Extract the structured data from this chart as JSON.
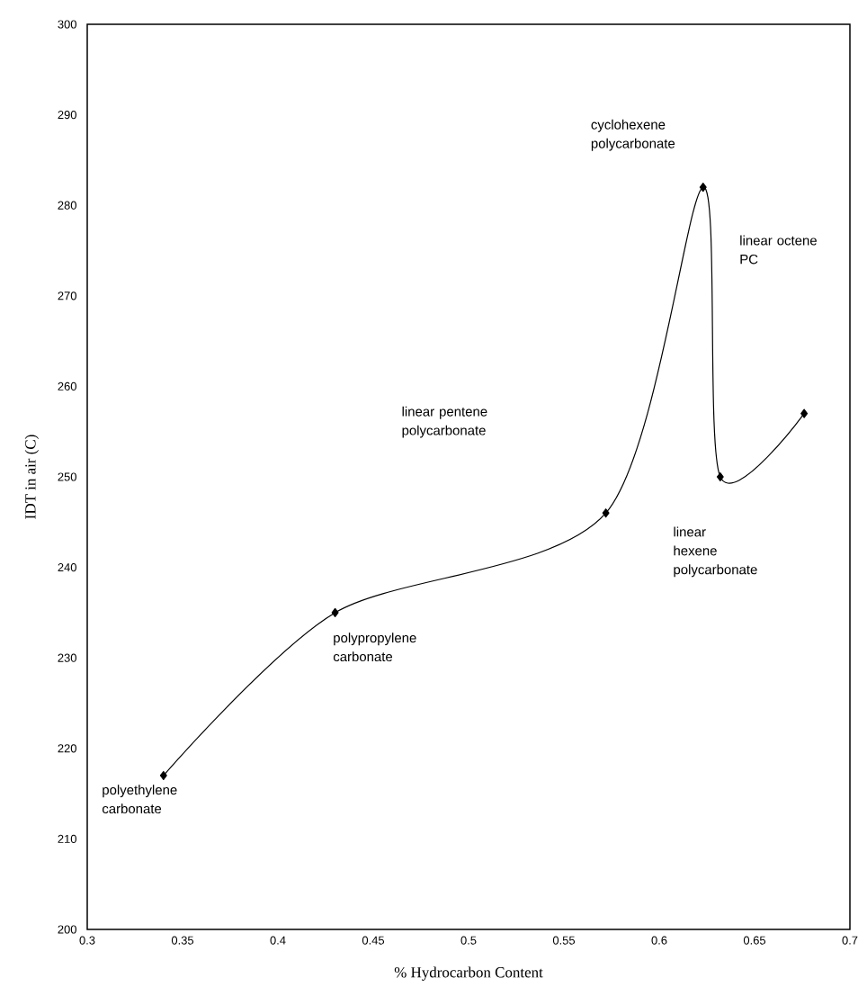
{
  "chart_data": {
    "type": "line",
    "xlabel": "% Hydrocarbon Content",
    "ylabel": "IDT in air (C)",
    "x": [
      0.34,
      0.43,
      0.572,
      0.623,
      0.632,
      0.676
    ],
    "series": [
      {
        "color": "#000000",
        "values": [
          217,
          235,
          246,
          282,
          250,
          257
        ]
      }
    ],
    "marker": "diamond",
    "line_style": "solid",
    "grid": false,
    "xlim": [
      0.3,
      0.7
    ],
    "xticks": [
      0.3,
      0.35,
      0.4,
      0.45,
      0.5,
      0.55,
      0.6,
      0.65,
      0.7
    ],
    "ylim": [
      200,
      300
    ],
    "yticks": [
      200,
      210,
      220,
      230,
      240,
      250,
      260,
      270,
      280,
      290,
      300
    ],
    "annotations": [
      "polyethylene carbonate",
      "polypropylene carbonate",
      "linear pentene polycarbonate",
      "cyclohexene polycarbonate",
      "linear octene PC",
      "linear hexene polycarbonate"
    ]
  }
}
